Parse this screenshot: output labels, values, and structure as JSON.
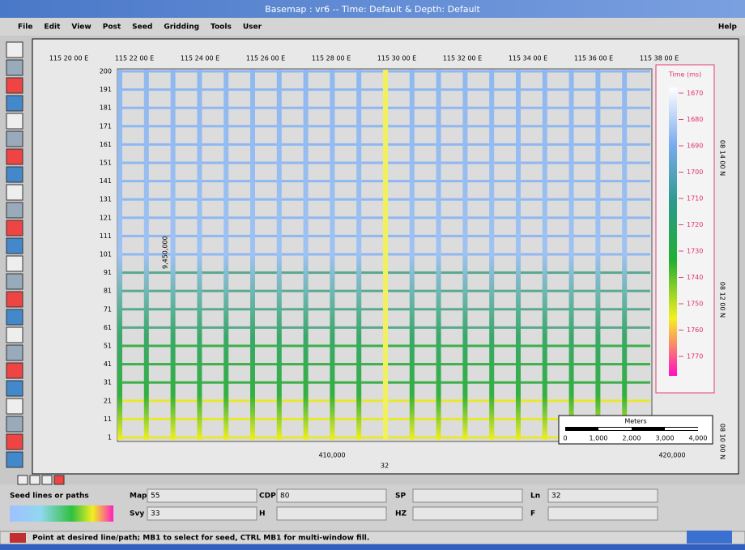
{
  "window": {
    "title": "Basemap : vr6 -- Time: Default & Depth: Default"
  },
  "menu": {
    "items": [
      "File",
      "Edit",
      "View",
      "Post",
      "Seed",
      "Gridding",
      "Tools",
      "User"
    ],
    "help": "Help"
  },
  "map": {
    "top_axis": [
      "115 20 00 E",
      "115 22 00 E",
      "115 24 00 E",
      "115 26 00 E",
      "115 28 00 E",
      "115 30 00 E",
      "115 32 00 E",
      "115 34 00 E",
      "115 36 00 E",
      "115 38 00 E"
    ],
    "right_axis": [
      "08 14 00 N",
      "08 12 00 N",
      "08 10 00 N"
    ],
    "left_axis": "9,450,000",
    "bottom_axis": [
      "410,000",
      "420,000"
    ],
    "line_numbers": [
      "200",
      "191",
      "181",
      "171",
      "161",
      "151",
      "141",
      "131",
      "121",
      "111",
      "101",
      "91",
      "81",
      "71",
      "61",
      "51",
      "41",
      "31",
      "21",
      "11",
      "1"
    ],
    "bottom_label": "32"
  },
  "colorbar": {
    "title": "Time (ms)",
    "ticks": [
      1670,
      1680,
      1690,
      1700,
      1710,
      1720,
      1730,
      1740,
      1750,
      1760,
      1770
    ]
  },
  "scale_bar": {
    "title": "Meters",
    "ticks": [
      "0",
      "1,000",
      "2,000",
      "3,000",
      "4,000"
    ]
  },
  "panel": {
    "mode": "Seed lines or paths",
    "fields": [
      {
        "label": "Map",
        "value": "55"
      },
      {
        "label": "CDP",
        "value": "80"
      },
      {
        "label": "SP"
      },
      {
        "label": "Ln",
        "value": "32"
      },
      {
        "label": "Svy",
        "value": "33"
      },
      {
        "label": "H"
      },
      {
        "label": "HZ"
      },
      {
        "label": "F"
      }
    ]
  },
  "status": "Point at desired line/path; MB1 to select for seed, CTRL MB1 for multi-window fill."
}
